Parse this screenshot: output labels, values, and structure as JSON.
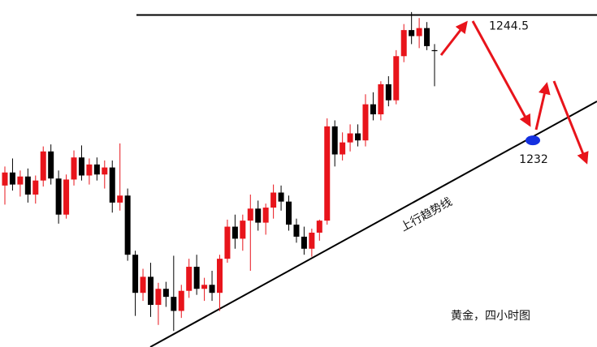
{
  "chart_data": {
    "type": "candlestick",
    "title": "黄金，四小时图",
    "trendline_label": "上行趋势线",
    "resistance": 1244.5,
    "support_point": 1232,
    "up_color": "#e8141b",
    "down_color": "#000000",
    "point_color": "#1430e0",
    "ylim": [
      1211.4,
      1246
    ],
    "open": [
      1227.5,
      1228.8,
      1227.6,
      1228.4,
      1226.6,
      1228.0,
      1230.9,
      1228.2,
      1224.6,
      1228.1,
      1230.3,
      1228.5,
      1229.6,
      1228.6,
      1229.3,
      1225.8,
      1226.5,
      1220.6,
      1216.8,
      1218.4,
      1215.6,
      1217.2,
      1216.4,
      1215.0,
      1217.0,
      1219.4,
      1217.2,
      1217.6,
      1216.8,
      1220.2,
      1223.4,
      1222.2,
      1224.0,
      1225.2,
      1223.8,
      1225.3,
      1226.8,
      1225.9,
      1223.6,
      1222.4,
      1221.2,
      1222.8,
      1224.0,
      1233.4,
      1230.6,
      1231.8,
      1232.7,
      1232.0,
      1235.6,
      1234.6,
      1237.6,
      1236.0,
      1240.4,
      1243.0,
      1242.4,
      1243.2,
      1241.0
    ],
    "high": [
      1229.4,
      1230.2,
      1229.0,
      1229.2,
      1228.5,
      1231.4,
      1231.6,
      1229.0,
      1228.6,
      1231.0,
      1231.5,
      1230.2,
      1230.3,
      1230.0,
      1230.0,
      1231.7,
      1227.2,
      1221.0,
      1219.2,
      1219.8,
      1217.8,
      1217.9,
      1220.5,
      1217.6,
      1220.2,
      1220.6,
      1218.3,
      1219.0,
      1220.6,
      1224.1,
      1224.6,
      1224.6,
      1226.6,
      1226.0,
      1225.7,
      1227.6,
      1227.5,
      1226.5,
      1224.2,
      1223.4,
      1223.2,
      1224.1,
      1234.2,
      1234.0,
      1232.8,
      1233.6,
      1233.6,
      1236.6,
      1236.8,
      1237.9,
      1238.4,
      1241.0,
      1243.6,
      1244.8,
      1244.2,
      1243.8,
      1241.6
    ],
    "low": [
      1225.6,
      1227.0,
      1226.4,
      1225.8,
      1225.7,
      1227.4,
      1227.6,
      1223.7,
      1224.2,
      1227.5,
      1228.0,
      1227.6,
      1228.0,
      1227.2,
      1224.8,
      1225.0,
      1220.0,
      1214.5,
      1216.0,
      1214.4,
      1213.6,
      1215.4,
      1213.0,
      1214.3,
      1216.3,
      1216.6,
      1216.0,
      1216.0,
      1215.0,
      1219.8,
      1221.2,
      1221.0,
      1219.0,
      1223.0,
      1222.6,
      1224.2,
      1225.0,
      1223.0,
      1221.8,
      1220.6,
      1220.4,
      1222.0,
      1223.6,
      1229.4,
      1230.0,
      1230.9,
      1231.4,
      1231.4,
      1234.0,
      1234.0,
      1235.4,
      1235.6,
      1239.8,
      1241.6,
      1241.2,
      1241.0,
      1237.4
    ],
    "close": [
      1228.8,
      1227.6,
      1228.4,
      1226.6,
      1228.0,
      1230.9,
      1228.2,
      1224.6,
      1228.1,
      1230.3,
      1228.5,
      1229.6,
      1228.6,
      1229.3,
      1225.8,
      1226.5,
      1220.6,
      1216.8,
      1218.4,
      1215.6,
      1217.2,
      1216.4,
      1215.0,
      1217.0,
      1219.4,
      1217.2,
      1217.6,
      1216.8,
      1220.2,
      1223.4,
      1222.2,
      1224.0,
      1225.2,
      1223.8,
      1225.3,
      1226.8,
      1225.9,
      1223.6,
      1222.4,
      1221.2,
      1222.8,
      1224.0,
      1233.4,
      1230.6,
      1231.8,
      1232.7,
      1232.0,
      1235.6,
      1234.6,
      1237.6,
      1236.0,
      1240.4,
      1243.0,
      1242.4,
      1243.2,
      1241.4,
      1240.9
    ]
  }
}
